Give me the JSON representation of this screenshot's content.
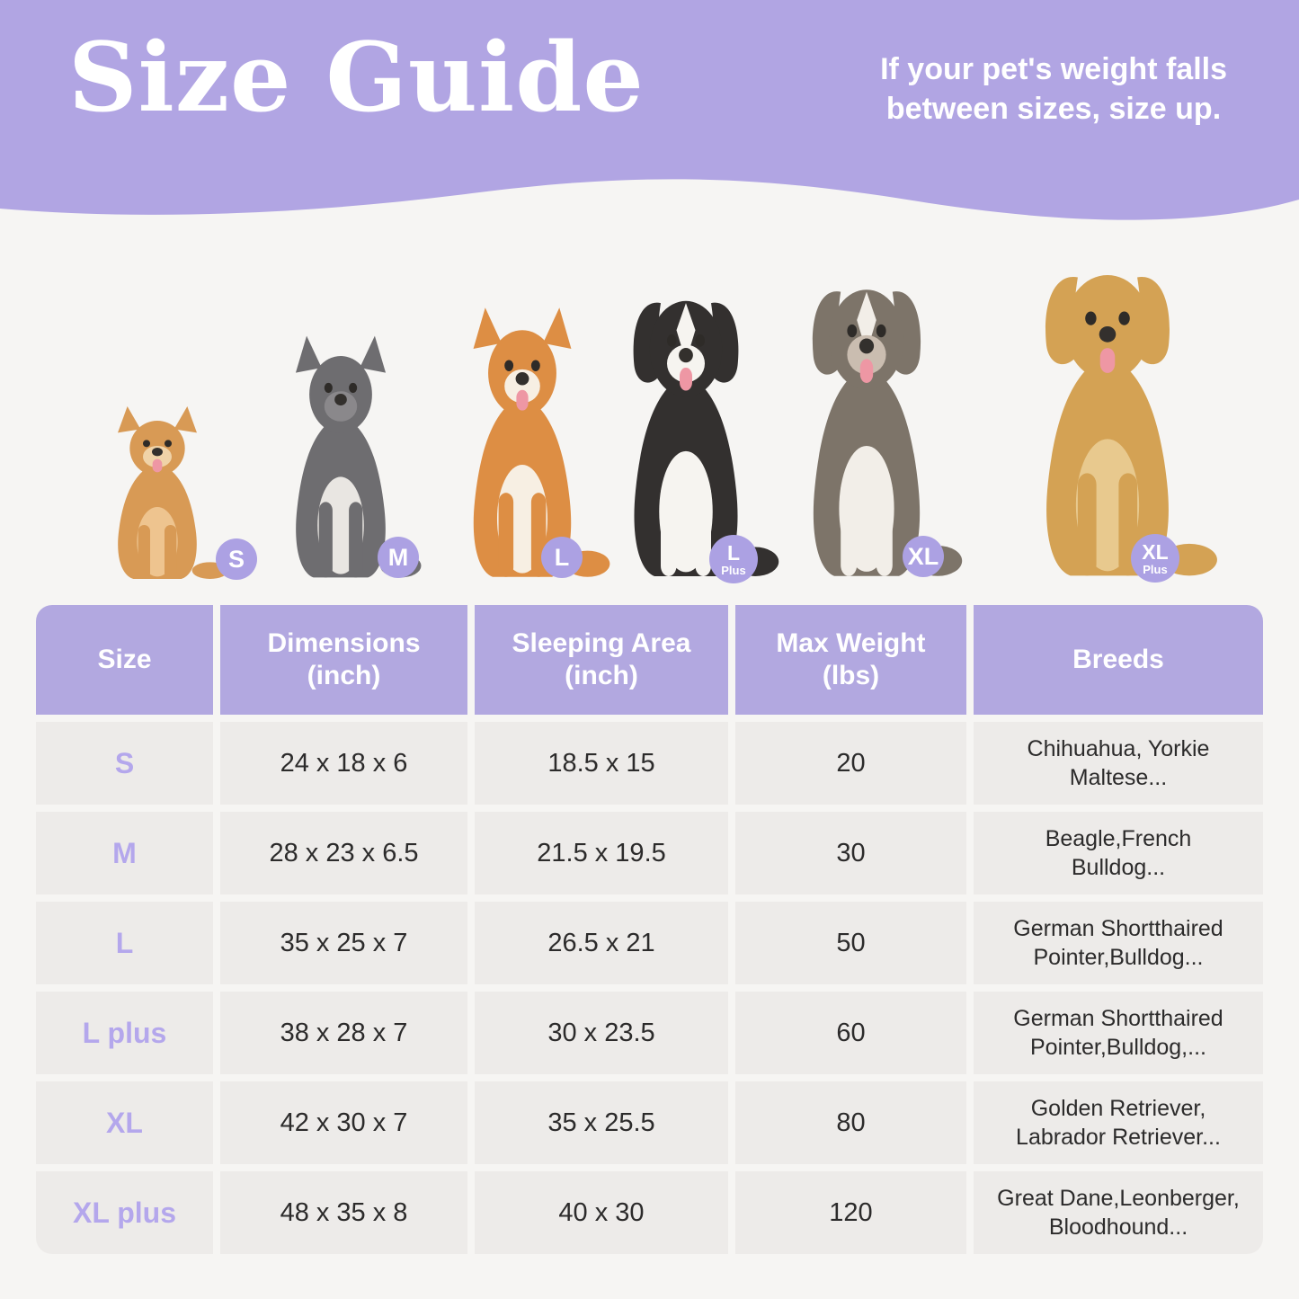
{
  "header": {
    "title": "Size Guide",
    "note_line1": "If your pet's weight falls",
    "note_line2": "between sizes, size up.",
    "background": "#b1a5e3",
    "text_color": "#ffffff"
  },
  "colors": {
    "page_bg": "#f6f5f3",
    "badge": "#aca1e3",
    "table_header": "#b2a8e0",
    "row_bg": "#edebe9",
    "size_text": "#b4a7ec",
    "text": "#2c2b2b"
  },
  "dogs": [
    {
      "breed": "Pomeranian",
      "badge": "S",
      "badge_sub": "",
      "body": "#d89a55",
      "chest": "#eec48f",
      "muzzle": "#f0d3a8",
      "legs": "#d89a55",
      "ears": "pointy",
      "tongue": true,
      "blaze": false
    },
    {
      "breed": "French Bulldog",
      "badge": "M",
      "badge_sub": "",
      "body": "#6e6d70",
      "chest": "#e9e6e2",
      "muzzle": "#8a888b",
      "legs": "#6e6d70",
      "ears": "pointy",
      "tongue": false,
      "blaze": false
    },
    {
      "breed": "Shiba Inu",
      "badge": "L",
      "badge_sub": "",
      "body": "#dd8e44",
      "chest": "#f7efe3",
      "muzzle": "#f7efe3",
      "legs": "#dd8e44",
      "ears": "pointy",
      "tongue": true,
      "blaze": false
    },
    {
      "breed": "Border Collie",
      "badge": "L",
      "badge_sub": "Plus",
      "body": "#33302f",
      "chest": "#f6f4f0",
      "muzzle": "#f6f4f0",
      "legs": "#f6f4f0",
      "ears": "floppy",
      "tongue": true,
      "blaze": true
    },
    {
      "breed": "Australian Shepherd",
      "badge": "XL",
      "badge_sub": "",
      "body": "#7d7469",
      "chest": "#f2eee8",
      "muzzle": "#cabdb0",
      "legs": "#f2eee8",
      "ears": "floppy",
      "tongue": true,
      "blaze": true
    },
    {
      "breed": "Golden Retriever",
      "badge": "XL",
      "badge_sub": "Plus",
      "body": "#d4a254",
      "chest": "#e8c98e",
      "muzzle": "#d4a254",
      "legs": "#d4a254",
      "ears": "floppy",
      "tongue": true,
      "blaze": false
    }
  ],
  "table": {
    "columns": [
      {
        "label": "Size",
        "sub": ""
      },
      {
        "label": "Dimensions",
        "sub": "(inch)"
      },
      {
        "label": "Sleeping Area",
        "sub": "(inch)"
      },
      {
        "label": "Max Weight",
        "sub": "(lbs)"
      },
      {
        "label": "Breeds",
        "sub": ""
      }
    ],
    "rows": [
      {
        "size": "S",
        "dimensions": "24 x 18 x 6",
        "sleeping_area": "18.5 x 15",
        "max_weight": "20",
        "breeds": "Chihuahua, Yorkie\nMaltese..."
      },
      {
        "size": "M",
        "dimensions": "28 x 23 x 6.5",
        "sleeping_area": "21.5 x 19.5",
        "max_weight": "30",
        "breeds": "Beagle,French\nBulldog..."
      },
      {
        "size": "L",
        "dimensions": "35 x 25 x 7",
        "sleeping_area": "26.5 x 21",
        "max_weight": "50",
        "breeds": "German Shortthaired\nPointer,Bulldog..."
      },
      {
        "size": "L plus",
        "dimensions": "38 x 28 x 7",
        "sleeping_area": "30 x 23.5",
        "max_weight": "60",
        "breeds": "German Shortthaired\nPointer,Bulldog,..."
      },
      {
        "size": "XL",
        "dimensions": "42 x 30 x 7",
        "sleeping_area": "35 x 25.5",
        "max_weight": "80",
        "breeds": "Golden Retriever,\nLabrador Retriever..."
      },
      {
        "size": "XL plus",
        "dimensions": "48 x 35 x 8",
        "sleeping_area": "40 x 30",
        "max_weight": "120",
        "breeds": "Great Dane,Leonberger,\nBloodhound..."
      }
    ]
  }
}
